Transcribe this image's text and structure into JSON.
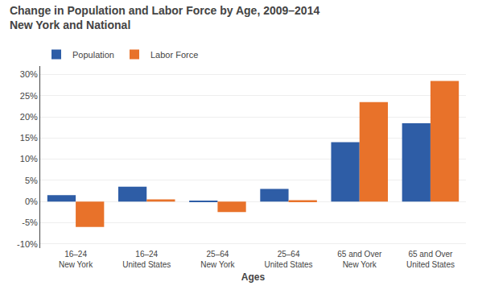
{
  "chart_data": {
    "type": "bar",
    "title": "Change in Population and Labor Force by Age, 2009–2014",
    "subtitle": "New York and National",
    "xlabel": "Ages",
    "categories": [
      "16–24\nNew York",
      "16–24\nUnited States",
      "25–64\nNew York",
      "25–64\nUnited States",
      "65 and Over\nNew York",
      "65 and Over\nUnited States"
    ],
    "series": [
      {
        "name": "Population",
        "color": "#2E5DA6",
        "values": [
          1.5,
          3.5,
          0.2,
          3.0,
          14.0,
          18.5
        ]
      },
      {
        "name": "Labor Force",
        "color": "#E8722A",
        "values": [
          -6.0,
          0.5,
          -2.5,
          0.3,
          23.5,
          28.5
        ]
      }
    ],
    "ylim": [
      -11,
      32
    ],
    "yticks": [
      {
        "value": -10,
        "label": "-10%"
      },
      {
        "value": -5,
        "label": "-5%"
      },
      {
        "value": 0,
        "label": "0%"
      },
      {
        "value": 5,
        "label": "5%"
      },
      {
        "value": 10,
        "label": "10%"
      },
      {
        "value": 15,
        "label": "15%"
      },
      {
        "value": 20,
        "label": "20%"
      },
      {
        "value": 25,
        "label": "25%"
      },
      {
        "value": 30,
        "label": "30%"
      }
    ],
    "grid": true,
    "legend": "upper left"
  }
}
